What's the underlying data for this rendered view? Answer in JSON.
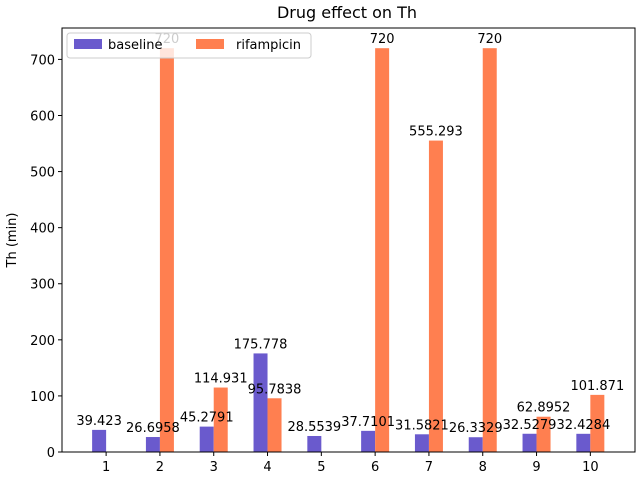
{
  "chart_data": {
    "type": "bar",
    "title": "Drug effect on Th",
    "xlabel": "",
    "ylabel": "Th (min)",
    "categories": [
      "1",
      "2",
      "3",
      "4",
      "5",
      "6",
      "7",
      "8",
      "9",
      "10"
    ],
    "series": [
      {
        "name": "baseline",
        "color": "#6a5acd",
        "values": [
          39.423,
          26.6958,
          45.2791,
          175.778,
          28.5539,
          37.7101,
          31.5821,
          26.3329,
          32.5279,
          32.4284
        ],
        "labels": [
          "39.423",
          "26.6958",
          "45.2791",
          "175.778",
          "28.5539",
          "37.7101",
          "31.5821",
          "26.3329",
          "32.5279",
          "32.4284"
        ]
      },
      {
        "name": "rifampicin",
        "color": "#ff7f50",
        "values": [
          0,
          720,
          114.931,
          95.7838,
          0,
          720,
          555.293,
          720,
          62.8952,
          101.871
        ],
        "labels": [
          "",
          "720",
          "114.931",
          "95.7838",
          "",
          "720",
          "555.293",
          "720",
          "62.8952",
          "101.871"
        ]
      }
    ],
    "ylim": [
      0,
      756
    ],
    "yticks": [
      0,
      100,
      200,
      300,
      400,
      500,
      600,
      700
    ],
    "grid": false,
    "legend": "upper-left"
  }
}
